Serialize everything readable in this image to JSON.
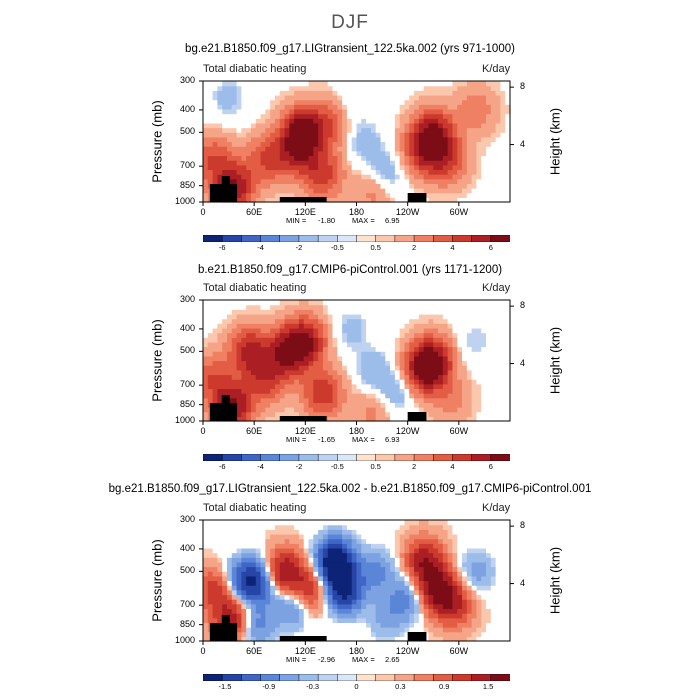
{
  "figure_title": "DJF",
  "chart_data": [
    {
      "type": "heatmap",
      "title": "bg.e21.B1850.f09_g17.LIGtransient_122.5ka.002 (yrs 971-1000)",
      "left_label": "Total diabatic heating",
      "units": "K/day",
      "ylabel": "Pressure (mb)",
      "ylabel_right": "Height (km)",
      "x_ticks": [
        "0",
        "60E",
        "120E",
        "180",
        "120W",
        "60W"
      ],
      "y_ticks": [
        "300",
        "400",
        "500",
        "700",
        "850",
        "1000"
      ],
      "y2_ticks": [
        "8",
        "4"
      ],
      "min_label": "MIN =",
      "min": "-1.80",
      "max_label": "MAX =",
      "max": "6.95",
      "colorbar_labels": [
        "-6",
        "-4",
        "-2",
        "-0.5",
        "0.5",
        "2",
        "4",
        "6"
      ],
      "features": [
        {
          "lon": 75,
          "p": 650,
          "v": 2.5
        },
        {
          "lon": 118,
          "p": 500,
          "v": 6.5
        },
        {
          "lon": 110,
          "p": 600,
          "v": 3.5
        },
        {
          "lon": 35,
          "p": 850,
          "v": 5.0
        },
        {
          "lon": 12,
          "p": 650,
          "v": 2.2
        },
        {
          "lon": 140,
          "p": 750,
          "v": 3.0
        },
        {
          "lon": 150,
          "p": 450,
          "v": 2.0
        },
        {
          "lon": 260,
          "p": 600,
          "v": 3.5
        },
        {
          "lon": 270,
          "p": 500,
          "v": 4.5
        },
        {
          "lon": 285,
          "p": 650,
          "v": 2.8
        },
        {
          "lon": 190,
          "p": 550,
          "v": -0.9
        },
        {
          "lon": 170,
          "p": 400,
          "v": -0.6
        },
        {
          "lon": 215,
          "p": 750,
          "v": -1.0
        },
        {
          "lon": 200,
          "p": 900,
          "v": 1.0
        },
        {
          "lon": 30,
          "p": 350,
          "v": -0.8
        },
        {
          "lon": 320,
          "p": 400,
          "v": 1.2
        }
      ]
    },
    {
      "type": "heatmap",
      "title": "b.e21.B1850.f09_g17.CMIP6-piControl.001 (yrs 1171-1200)",
      "left_label": "Total diabatic heating",
      "units": "K/day",
      "ylabel": "Pressure (mb)",
      "ylabel_right": "Height (km)",
      "x_ticks": [
        "0",
        "60E",
        "120E",
        "180",
        "120W",
        "60W"
      ],
      "y_ticks": [
        "300",
        "400",
        "500",
        "700",
        "850",
        "1000"
      ],
      "y2_ticks": [
        "8",
        "4"
      ],
      "min_label": "MIN =",
      "min": "-1.65",
      "max_label": "MAX =",
      "max": "6.93",
      "colorbar_labels": [
        "-6",
        "-4",
        "-2",
        "-0.5",
        "0.5",
        "2",
        "4",
        "6"
      ],
      "features": [
        {
          "lon": 55,
          "p": 500,
          "v": 4.0
        },
        {
          "lon": 75,
          "p": 650,
          "v": 3.0
        },
        {
          "lon": 100,
          "p": 500,
          "v": 5.0
        },
        {
          "lon": 120,
          "p": 450,
          "v": 4.5
        },
        {
          "lon": 35,
          "p": 850,
          "v": 5.0
        },
        {
          "lon": 12,
          "p": 650,
          "v": 2.2
        },
        {
          "lon": 140,
          "p": 750,
          "v": 3.2
        },
        {
          "lon": 260,
          "p": 600,
          "v": 3.8
        },
        {
          "lon": 268,
          "p": 550,
          "v": 5.0
        },
        {
          "lon": 200,
          "p": 600,
          "v": -1.0
        },
        {
          "lon": 175,
          "p": 400,
          "v": -0.8
        },
        {
          "lon": 225,
          "p": 750,
          "v": -1.1
        },
        {
          "lon": 320,
          "p": 450,
          "v": -0.6
        },
        {
          "lon": 200,
          "p": 900,
          "v": 1.0
        },
        {
          "lon": 290,
          "p": 800,
          "v": 1.0
        }
      ]
    },
    {
      "type": "heatmap",
      "title": "bg.e21.B1850.f09_g17.LIGtransient_122.5ka.002 - b.e21.B1850.f09_g17.CMIP6-piControl.001",
      "left_label": "Total diabatic heating",
      "units": "K/day",
      "ylabel": "Pressure (mb)",
      "ylabel_right": "Height (km)",
      "x_ticks": [
        "0",
        "60E",
        "120E",
        "180",
        "120W",
        "60W"
      ],
      "y_ticks": [
        "300",
        "400",
        "500",
        "700",
        "850",
        "1000"
      ],
      "y2_ticks": [
        "8",
        "4"
      ],
      "min_label": "MIN =",
      "min": "-2.96",
      "max_label": "MAX =",
      "max": "2.65",
      "colorbar_labels": [
        "-1.5",
        "-0.9",
        "-0.3",
        "0",
        "0.3",
        "0.9",
        "1.5"
      ],
      "features": [
        {
          "lon": 15,
          "p": 600,
          "v": 1.2
        },
        {
          "lon": 35,
          "p": 800,
          "v": 1.8
        },
        {
          "lon": 45,
          "p": 550,
          "v": -1.2
        },
        {
          "lon": 65,
          "p": 550,
          "v": -1.6
        },
        {
          "lon": 60,
          "p": 850,
          "v": -1.0
        },
        {
          "lon": 95,
          "p": 500,
          "v": 2.0
        },
        {
          "lon": 105,
          "p": 700,
          "v": -1.0
        },
        {
          "lon": 125,
          "p": 600,
          "v": 1.4
        },
        {
          "lon": 155,
          "p": 450,
          "v": -2.8
        },
        {
          "lon": 165,
          "p": 600,
          "v": -2.2
        },
        {
          "lon": 205,
          "p": 500,
          "v": -0.8
        },
        {
          "lon": 215,
          "p": 800,
          "v": -0.5
        },
        {
          "lon": 260,
          "p": 450,
          "v": 1.8
        },
        {
          "lon": 275,
          "p": 600,
          "v": 2.2
        },
        {
          "lon": 295,
          "p": 700,
          "v": 1.2
        },
        {
          "lon": 320,
          "p": 500,
          "v": -0.6
        },
        {
          "lon": 240,
          "p": 650,
          "v": -0.9
        }
      ]
    }
  ]
}
